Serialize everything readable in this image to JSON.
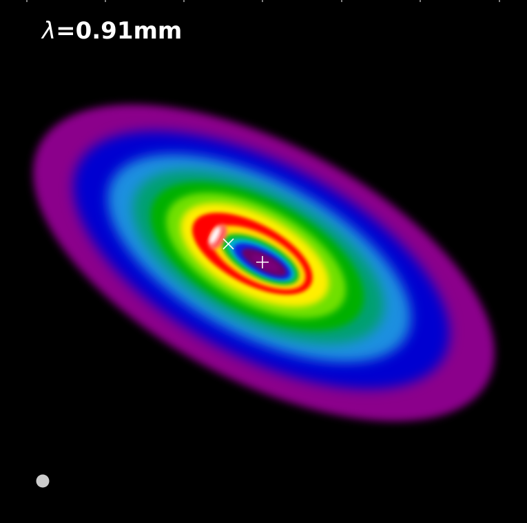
{
  "label": {
    "lambda_symbol": "λ",
    "text": "=0.91mm"
  },
  "colors": {
    "background": "#000000",
    "tick_marks": "#ffffff",
    "center_marker": "#ffffff",
    "offset_marker": "#ffffff",
    "beam": "#cccccc",
    "colormap": [
      "#8b008b",
      "#0000cd",
      "#1e90ff",
      "#00c000",
      "#ffff00",
      "#ff0000",
      "#ffffff"
    ]
  },
  "markers": {
    "center": "plus",
    "offset": "x"
  }
}
